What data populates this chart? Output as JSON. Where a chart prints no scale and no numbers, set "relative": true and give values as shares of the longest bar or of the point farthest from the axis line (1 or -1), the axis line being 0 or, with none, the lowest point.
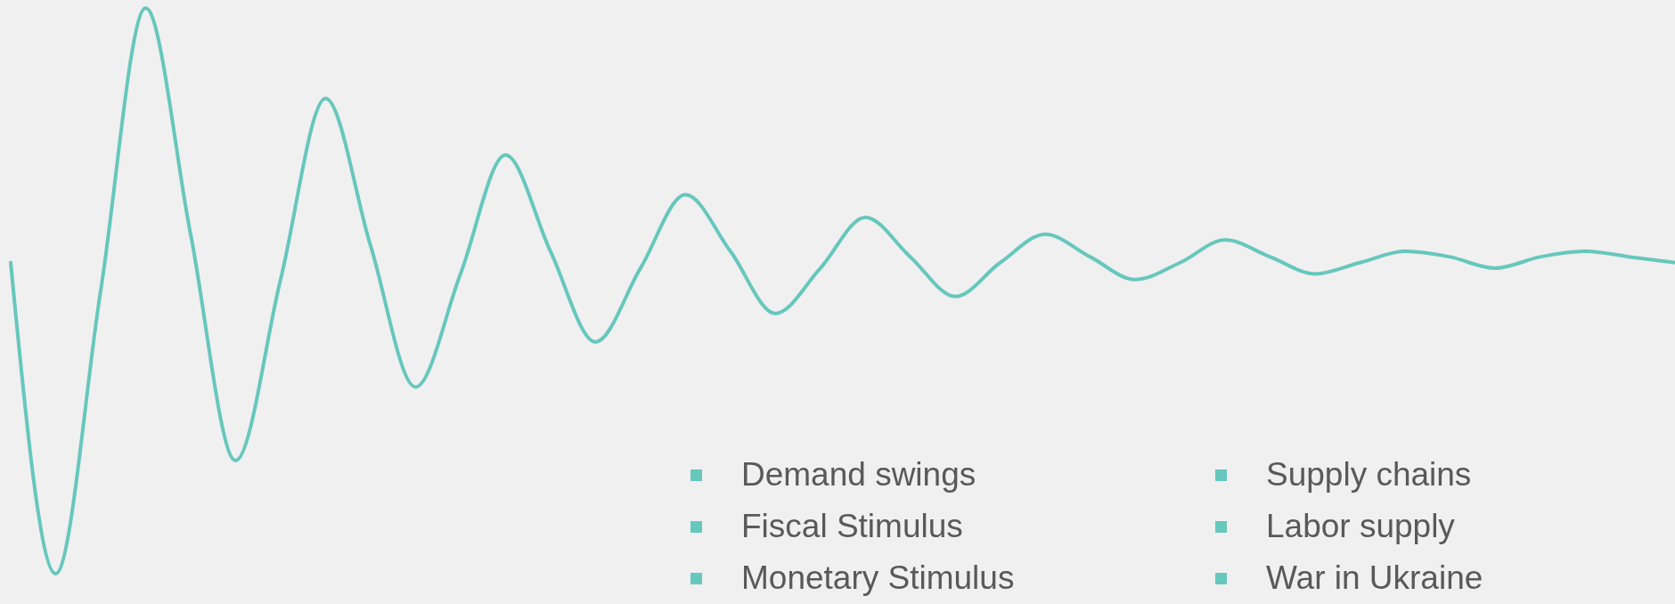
{
  "chart_data": {
    "type": "line",
    "relative": true,
    "categories": [
      null,
      null,
      null,
      null,
      null,
      null,
      null,
      null,
      null,
      null,
      null,
      null,
      null,
      null,
      null,
      null,
      null,
      null,
      null,
      null,
      null,
      null,
      null,
      null,
      null,
      null,
      null,
      null,
      null,
      null,
      null,
      null,
      null,
      null,
      null,
      null,
      null,
      null
    ],
    "series": [
      {
        "color": "#66c7bd",
        "values": [
          0.55,
          0,
          0.5,
          1,
          0.6,
          0.2,
          0.52,
          0.84,
          0.58,
          0.33,
          0.53,
          0.74,
          0.57,
          0.41,
          0.54,
          0.67,
          0.57,
          0.46,
          0.54,
          0.63,
          0.56,
          0.49,
          0.55,
          0.6,
          0.56,
          0.52,
          0.55,
          0.59,
          0.56,
          0.53,
          0.55,
          0.57,
          0.56,
          0.54,
          0.56,
          0.57,
          0.56,
          0.55
        ]
      }
    ],
    "annotations": [
      "Demand swings",
      "Fiscal Stimulus",
      "Monetary Stimulus",
      "Supply chains",
      "Labor supply",
      "War in Ukraine"
    ],
    "marker": "none",
    "line_style": "solid"
  }
}
